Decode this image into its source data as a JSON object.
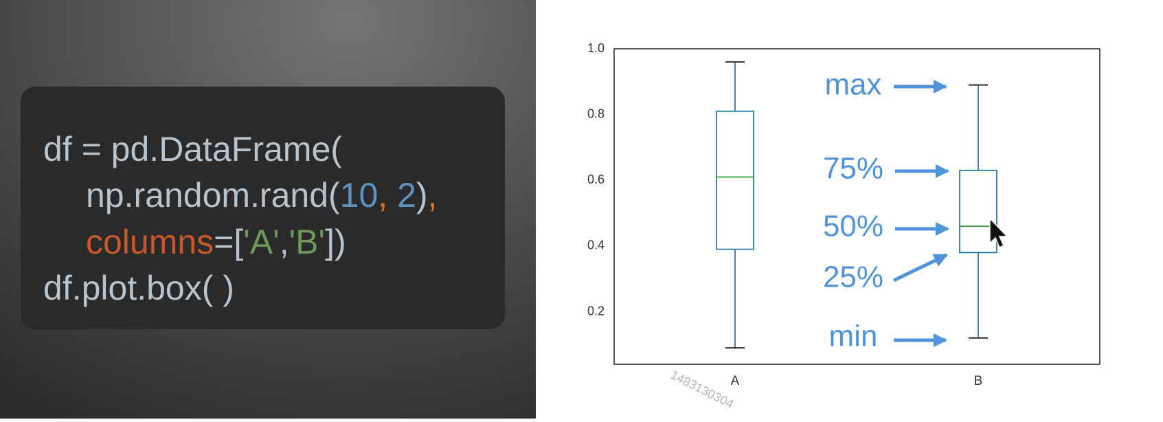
{
  "code_panel": {
    "lines": [
      [
        {
          "text": "df = pd.DataFrame(",
          "color": "#b9c3cb"
        }
      ],
      [
        {
          "text": "np.random.rand(",
          "color": "#b9c3cb"
        },
        {
          "text": "10",
          "color": "#5f93bf"
        },
        {
          "text": ",",
          "color": "#d9782d"
        },
        {
          "text": " 2",
          "color": "#5f93bf"
        },
        {
          "text": ")",
          "color": "#b9c3cb"
        },
        {
          "text": ",",
          "color": "#d9782d"
        }
      ],
      [
        {
          "text": "columns",
          "color": "#c9582c"
        },
        {
          "text": "=[",
          "color": "#b9c3cb"
        },
        {
          "text": "'A'",
          "color": "#6d9a58"
        },
        {
          "text": ",",
          "color": "#b9c3cb"
        },
        {
          "text": "'B'",
          "color": "#6d9a58"
        },
        {
          "text": "])",
          "color": "#b9c3cb"
        }
      ],
      [
        {
          "text": "df.plot.box( )",
          "color": "#b9c3cb"
        }
      ]
    ]
  },
  "chart_data": {
    "type": "box",
    "categories": [
      "A",
      "B"
    ],
    "boxes": [
      {
        "min": 0.09,
        "q1": 0.39,
        "median": 0.61,
        "q3": 0.81,
        "max": 0.96
      },
      {
        "min": 0.12,
        "q1": 0.38,
        "median": 0.46,
        "q3": 0.63,
        "max": 0.89
      }
    ],
    "box_color": "#2b7ba6",
    "median_color": "#3a9e3a",
    "ylim": [
      0.04,
      1.0
    ],
    "yticks": [
      0.2,
      0.4,
      0.6,
      0.8,
      {
        "value": 1.0,
        "label": "1.0"
      }
    ],
    "annotations": [
      "max",
      "75%",
      "50%",
      "25%",
      "min"
    ],
    "annotation_color": "#4f93db"
  },
  "watermark": "1483130304"
}
